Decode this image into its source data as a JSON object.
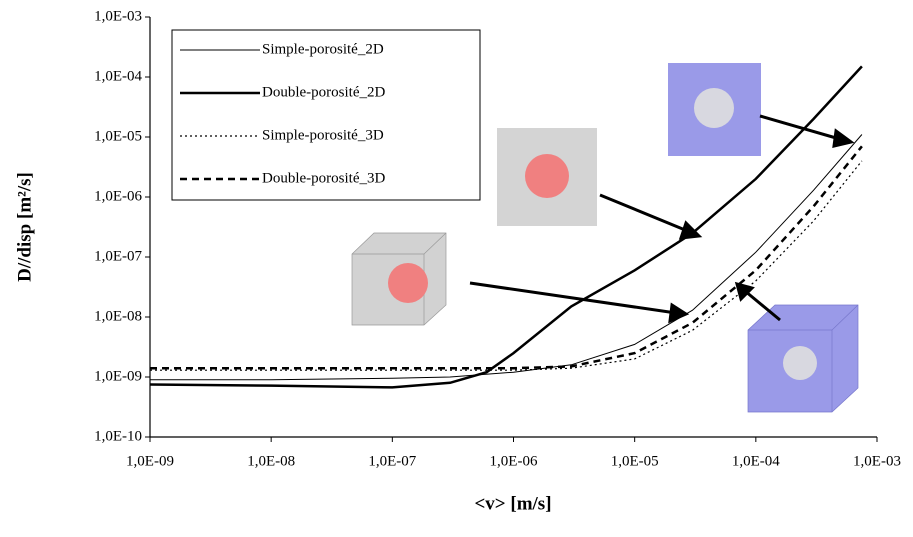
{
  "chart_data": {
    "type": "line",
    "xlabel": "<v> [m/s]",
    "ylabel": "D//disp [m²/s]",
    "xscale": "log",
    "yscale": "log",
    "xlim": [
      1e-09,
      0.001
    ],
    "ylim": [
      1e-10,
      0.001
    ],
    "xticks": [
      {
        "value": 1e-09,
        "label": "1,0E-09"
      },
      {
        "value": 1e-08,
        "label": "1,0E-08"
      },
      {
        "value": 1e-07,
        "label": "1,0E-07"
      },
      {
        "value": 1e-06,
        "label": "1,0E-06"
      },
      {
        "value": 1e-05,
        "label": "1,0E-05"
      },
      {
        "value": 0.0001,
        "label": "1,0E-04"
      },
      {
        "value": 0.001,
        "label": "1,0E-03"
      }
    ],
    "yticks": [
      {
        "value": 1e-10,
        "label": "1,0E-10"
      },
      {
        "value": 1e-09,
        "label": "1,0E-09"
      },
      {
        "value": 1e-08,
        "label": "1,0E-08"
      },
      {
        "value": 1e-07,
        "label": "1,0E-07"
      },
      {
        "value": 1e-06,
        "label": "1,0E-06"
      },
      {
        "value": 1e-05,
        "label": "1,0E-05"
      },
      {
        "value": 0.0001,
        "label": "1,0E-04"
      },
      {
        "value": 0.001,
        "label": "1,0E-03"
      }
    ],
    "legend": "top-left",
    "series": [
      {
        "name": "Simple-porosité_2D",
        "color": "#000000",
        "line_style": "solid",
        "line_width": 1,
        "x": [
          1e-09,
          1e-08,
          1e-07,
          3e-07,
          1e-06,
          3e-06,
          1e-05,
          3e-05,
          0.0001,
          0.0003,
          0.00075
        ],
        "values": [
          9e-10,
          9e-10,
          9.5e-10,
          1e-09,
          1.2e-09,
          1.6e-09,
          3.5e-09,
          1.3e-08,
          1.2e-07,
          1.3e-06,
          1.1e-05
        ]
      },
      {
        "name": "Double-porosité_2D",
        "color": "#000000",
        "line_style": "solid",
        "line_width": 2.5,
        "x": [
          1e-09,
          1e-08,
          1e-07,
          3e-07,
          6e-07,
          1e-06,
          3e-06,
          1e-05,
          3e-05,
          0.0001,
          0.0003,
          0.00075
        ],
        "values": [
          7.5e-10,
          7.2e-10,
          6.7e-10,
          8e-10,
          1.2e-09,
          2.5e-09,
          1.5e-08,
          6e-08,
          2.5e-07,
          2e-06,
          2e-05,
          0.00015
        ]
      },
      {
        "name": "Simple-porosité_3D",
        "color": "#000000",
        "line_style": "dotted",
        "line_width": 1.2,
        "x": [
          1e-09,
          1e-08,
          1e-07,
          3e-07,
          1e-06,
          3e-06,
          1e-05,
          3e-05,
          0.0001,
          0.0003,
          0.00075
        ],
        "values": [
          1.3e-09,
          1.3e-09,
          1.3e-09,
          1.3e-09,
          1.3e-09,
          1.4e-09,
          2e-09,
          6e-09,
          4e-08,
          4e-07,
          4e-06
        ]
      },
      {
        "name": "Double-porosité_3D",
        "color": "#000000",
        "line_style": "dashed",
        "line_width": 2.5,
        "x": [
          1e-09,
          1e-08,
          1e-07,
          3e-07,
          1e-06,
          3e-06,
          1e-05,
          3e-05,
          0.0001,
          0.0003,
          0.00075
        ],
        "values": [
          1.4e-09,
          1.4e-09,
          1.4e-09,
          1.4e-09,
          1.4e-09,
          1.5e-09,
          2.5e-09,
          8e-09,
          6e-08,
          7e-07,
          7e-06
        ]
      }
    ]
  }
}
